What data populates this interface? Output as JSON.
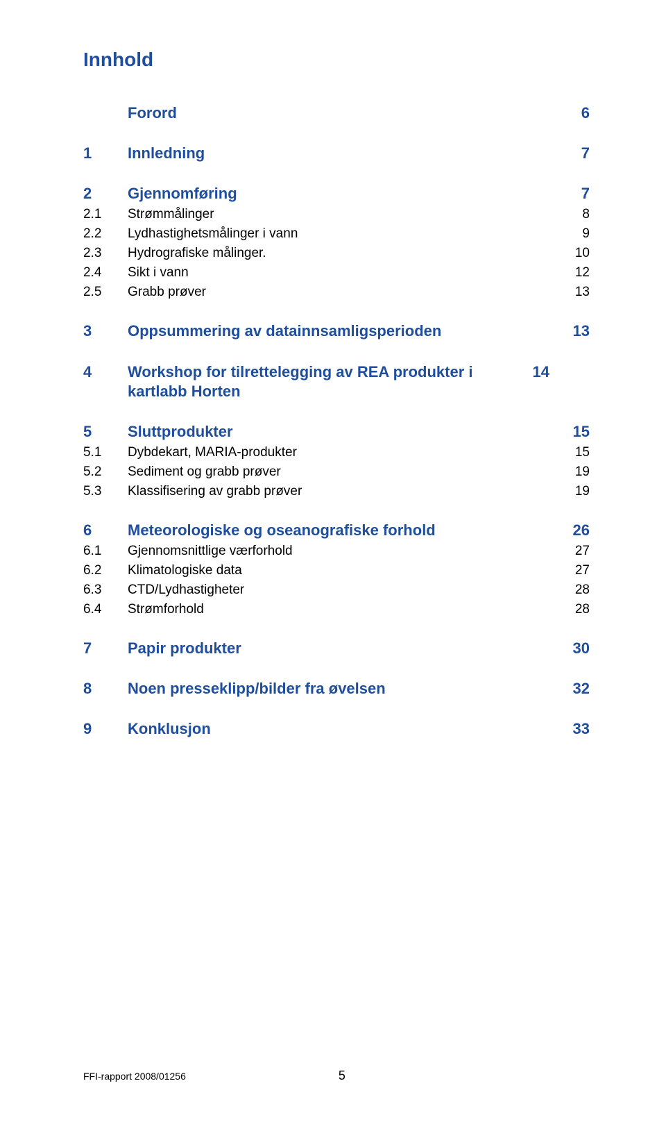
{
  "colors": {
    "heading_blue": "#1f4e9c",
    "body_text": "#000000",
    "background": "#ffffff"
  },
  "title": "Innhold",
  "groups": [
    {
      "entries": [
        {
          "level": 1,
          "num": "",
          "label": "Forord",
          "page": "6"
        }
      ]
    },
    {
      "entries": [
        {
          "level": 1,
          "num": "1",
          "label": "Innledning",
          "page": "7"
        }
      ]
    },
    {
      "entries": [
        {
          "level": 1,
          "num": "2",
          "label": "Gjennomføring",
          "page": "7"
        },
        {
          "level": 2,
          "num": "2.1",
          "label": "Strømmålinger",
          "page": "8"
        },
        {
          "level": 2,
          "num": "2.2",
          "label": "Lydhastighetsmålinger i vann",
          "page": "9"
        },
        {
          "level": 2,
          "num": "2.3",
          "label": "Hydrografiske målinger.",
          "page": "10"
        },
        {
          "level": 2,
          "num": "2.4",
          "label": "Sikt i vann",
          "page": "12"
        },
        {
          "level": 2,
          "num": "2.5",
          "label": "Grabb prøver",
          "page": "13"
        }
      ]
    },
    {
      "entries": [
        {
          "level": 1,
          "num": "3",
          "label": "Oppsummering av datainnsamligsperioden",
          "page": "13"
        }
      ]
    },
    {
      "entries": [
        {
          "level": 1,
          "num": "4",
          "label": "Workshop for tilrettelegging av REA produkter i kartlabb Horten",
          "page": "14",
          "wrap": true
        }
      ]
    },
    {
      "entries": [
        {
          "level": 1,
          "num": "5",
          "label": "Sluttprodukter",
          "page": "15"
        },
        {
          "level": 2,
          "num": "5.1",
          "label": "Dybdekart, MARIA-produkter",
          "page": "15"
        },
        {
          "level": 2,
          "num": "5.2",
          "label": "Sediment og grabb prøver",
          "page": "19"
        },
        {
          "level": 2,
          "num": "5.3",
          "label": "Klassifisering av grabb prøver",
          "page": "19"
        }
      ]
    },
    {
      "entries": [
        {
          "level": 1,
          "num": "6",
          "label": "Meteorologiske og oseanografiske forhold",
          "page": "26"
        },
        {
          "level": 2,
          "num": "6.1",
          "label": "Gjennomsnittlige værforhold",
          "page": "27"
        },
        {
          "level": 2,
          "num": "6.2",
          "label": "Klimatologiske data",
          "page": "27"
        },
        {
          "level": 2,
          "num": "6.3",
          "label": "CTD/Lydhastigheter",
          "page": "28"
        },
        {
          "level": 2,
          "num": "6.4",
          "label": "Strømforhold",
          "page": "28"
        }
      ]
    },
    {
      "entries": [
        {
          "level": 1,
          "num": "7",
          "label": "Papir produkter",
          "page": "30"
        }
      ]
    },
    {
      "entries": [
        {
          "level": 1,
          "num": "8",
          "label": "Noen presseklipp/bilder fra øvelsen",
          "page": "32"
        }
      ]
    },
    {
      "entries": [
        {
          "level": 1,
          "num": "9",
          "label": "Konklusjon",
          "page": "33"
        }
      ]
    }
  ],
  "footer": {
    "report_ref": "FFI-rapport 2008/01256",
    "page_number": "5"
  }
}
